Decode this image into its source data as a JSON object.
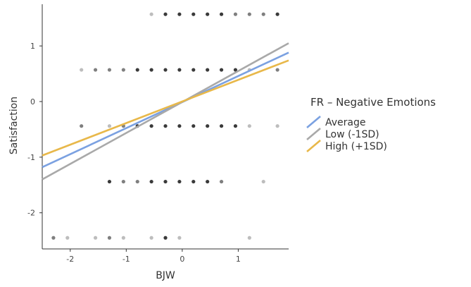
{
  "chart_data": {
    "type": "scatter",
    "title": "",
    "xlabel": "BJW",
    "ylabel": "Satisfaction",
    "xlim": [
      -2.5,
      1.9
    ],
    "ylim": [
      -2.65,
      1.75
    ],
    "x_ticks": [
      "-2",
      "-1",
      "0",
      "1"
    ],
    "y_ticks": [
      "-2",
      "-1",
      "0",
      "1"
    ],
    "grid": false,
    "legend": {
      "title": "FR – Negative Emotions",
      "placement": "right",
      "entries": [
        {
          "label": "Average",
          "color": "#7ba1e1"
        },
        {
          "label": "Low (-1SD)",
          "color": "#a9a9a9"
        },
        {
          "label": "High (+1SD)",
          "color": "#e8b84a"
        }
      ]
    },
    "points": [
      {
        "x": -0.55,
        "y": 1.57,
        "count": 1
      },
      {
        "x": -0.3,
        "y": 1.57,
        "count": 3
      },
      {
        "x": -0.05,
        "y": 1.57,
        "count": 3
      },
      {
        "x": 0.2,
        "y": 1.57,
        "count": 3
      },
      {
        "x": 0.45,
        "y": 1.57,
        "count": 3
      },
      {
        "x": 0.7,
        "y": 1.57,
        "count": 3
      },
      {
        "x": 0.95,
        "y": 1.57,
        "count": 2
      },
      {
        "x": 1.2,
        "y": 1.57,
        "count": 2
      },
      {
        "x": 1.45,
        "y": 1.57,
        "count": 2
      },
      {
        "x": 1.7,
        "y": 1.57,
        "count": 3
      },
      {
        "x": -1.8,
        "y": 0.57,
        "count": 1
      },
      {
        "x": -1.55,
        "y": 0.57,
        "count": 2
      },
      {
        "x": -1.3,
        "y": 0.57,
        "count": 2
      },
      {
        "x": -1.05,
        "y": 0.57,
        "count": 2
      },
      {
        "x": -0.8,
        "y": 0.57,
        "count": 3
      },
      {
        "x": -0.55,
        "y": 0.57,
        "count": 3
      },
      {
        "x": -0.3,
        "y": 0.57,
        "count": 3
      },
      {
        "x": -0.05,
        "y": 0.57,
        "count": 3
      },
      {
        "x": 0.2,
        "y": 0.57,
        "count": 3
      },
      {
        "x": 0.45,
        "y": 0.57,
        "count": 3
      },
      {
        "x": 0.7,
        "y": 0.57,
        "count": 3
      },
      {
        "x": 0.95,
        "y": 0.57,
        "count": 3
      },
      {
        "x": 1.2,
        "y": 0.57,
        "count": 1
      },
      {
        "x": 1.7,
        "y": 0.57,
        "count": 2
      },
      {
        "x": -1.8,
        "y": -0.44,
        "count": 2
      },
      {
        "x": -1.3,
        "y": -0.44,
        "count": 1
      },
      {
        "x": -1.05,
        "y": -0.44,
        "count": 2
      },
      {
        "x": -0.8,
        "y": -0.44,
        "count": 3
      },
      {
        "x": -0.55,
        "y": -0.44,
        "count": 3
      },
      {
        "x": -0.3,
        "y": -0.44,
        "count": 3
      },
      {
        "x": -0.05,
        "y": -0.44,
        "count": 3
      },
      {
        "x": 0.2,
        "y": -0.44,
        "count": 3
      },
      {
        "x": 0.45,
        "y": -0.44,
        "count": 3
      },
      {
        "x": 0.7,
        "y": -0.44,
        "count": 3
      },
      {
        "x": 0.95,
        "y": -0.44,
        "count": 3
      },
      {
        "x": 1.2,
        "y": -0.44,
        "count": 1
      },
      {
        "x": 1.7,
        "y": -0.44,
        "count": 1
      },
      {
        "x": -1.3,
        "y": -1.44,
        "count": 3
      },
      {
        "x": -1.05,
        "y": -1.44,
        "count": 2
      },
      {
        "x": -0.8,
        "y": -1.44,
        "count": 2
      },
      {
        "x": -0.55,
        "y": -1.44,
        "count": 3
      },
      {
        "x": -0.3,
        "y": -1.44,
        "count": 3
      },
      {
        "x": -0.05,
        "y": -1.44,
        "count": 3
      },
      {
        "x": 0.2,
        "y": -1.44,
        "count": 3
      },
      {
        "x": 0.45,
        "y": -1.44,
        "count": 3
      },
      {
        "x": 0.7,
        "y": -1.44,
        "count": 2
      },
      {
        "x": 1.45,
        "y": -1.44,
        "count": 1
      },
      {
        "x": -2.3,
        "y": -2.45,
        "count": 2
      },
      {
        "x": -2.05,
        "y": -2.45,
        "count": 1
      },
      {
        "x": -1.55,
        "y": -2.45,
        "count": 1
      },
      {
        "x": -1.3,
        "y": -2.45,
        "count": 2
      },
      {
        "x": -1.05,
        "y": -2.45,
        "count": 1
      },
      {
        "x": -0.55,
        "y": -2.45,
        "count": 1
      },
      {
        "x": -0.3,
        "y": -2.45,
        "count": 3
      },
      {
        "x": -0.05,
        "y": -2.45,
        "count": 1
      },
      {
        "x": 1.2,
        "y": -2.45,
        "count": 1
      }
    ],
    "lines": [
      {
        "name": "Average",
        "color": "#7ba1e1",
        "x": [
          -2.5,
          1.9
        ],
        "y": [
          -1.18,
          0.88
        ]
      },
      {
        "name": "Low (-1SD)",
        "color": "#a9a9a9",
        "x": [
          -2.5,
          1.9
        ],
        "y": [
          -1.4,
          1.05
        ]
      },
      {
        "name": "High (+1SD)",
        "color": "#e8b84a",
        "x": [
          -2.5,
          1.9
        ],
        "y": [
          -0.97,
          0.74
        ]
      }
    ]
  }
}
